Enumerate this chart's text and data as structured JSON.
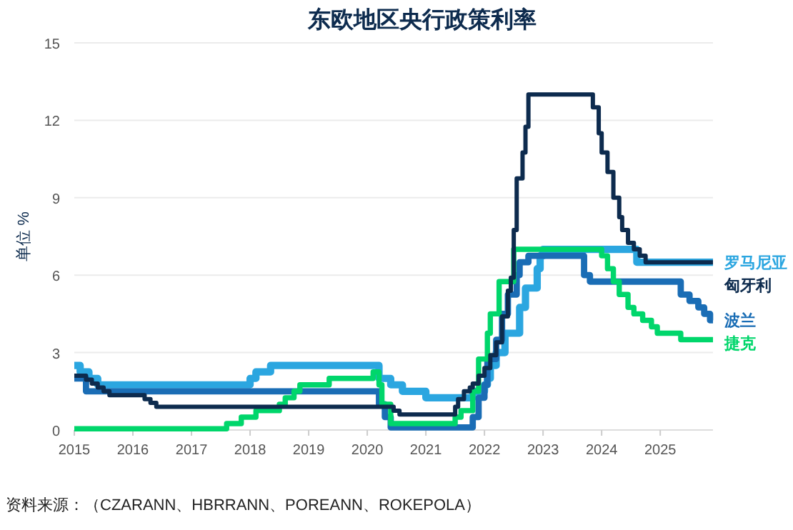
{
  "chart_data": {
    "type": "step",
    "title": "东欧地区央行政策利率",
    "ylabel": "单位 %",
    "annotations": [
      "资料来源：（CZARANN、HBRRANN、POREANN、ROKEPOLA）"
    ],
    "xlim": [
      2015,
      2025.9
    ],
    "xticks": [
      2015,
      2016,
      2017,
      2018,
      2019,
      2020,
      2021,
      2022,
      2023,
      2024,
      2025
    ],
    "ylim": [
      0,
      15
    ],
    "yticks": [
      0,
      3,
      6,
      9,
      12,
      15
    ],
    "grid": "y",
    "legend": false,
    "line_style": "solid",
    "marker": "none",
    "series": [
      {
        "name": "罗马尼亚",
        "color": "#2ba6e0",
        "x": [
          2015,
          2015.1,
          2015.25,
          2015.4,
          2018.0,
          2018.1,
          2018.35,
          2020.2,
          2020.4,
          2020.6,
          2021.0,
          2021.8,
          2022.0,
          2022.05,
          2022.1,
          2022.2,
          2022.35,
          2022.6,
          2022.7,
          2022.9,
          2022.95,
          2023.0,
          2024.6,
          2025.9
        ],
        "values": [
          2.5,
          2.25,
          2.0,
          1.75,
          2.0,
          2.25,
          2.5,
          2.0,
          1.75,
          1.5,
          1.25,
          1.5,
          1.75,
          2.0,
          2.5,
          3.0,
          3.75,
          4.75,
          5.5,
          6.25,
          6.75,
          7.0,
          6.5,
          6.5
        ]
      },
      {
        "name": "波兰",
        "color": "#1a6db5",
        "x": [
          2015,
          2015.2,
          2020.2,
          2020.3,
          2020.4,
          2021.8,
          2021.9,
          2022.0,
          2022.05,
          2022.2,
          2022.3,
          2022.4,
          2022.55,
          2022.6,
          2022.75,
          2023.7,
          2023.8,
          2025.35,
          2025.5,
          2025.65,
          2025.75,
          2025.85,
          2025.9
        ],
        "values": [
          2.0,
          1.5,
          1.0,
          0.5,
          0.1,
          0.5,
          1.25,
          1.75,
          2.75,
          3.5,
          4.5,
          5.25,
          6.0,
          6.5,
          6.75,
          6.0,
          5.75,
          5.25,
          5.0,
          4.75,
          4.5,
          4.25,
          4.25
        ]
      },
      {
        "name": "捷克",
        "color": "#00d66b",
        "x": [
          2015,
          2017.6,
          2017.85,
          2018.1,
          2018.5,
          2018.6,
          2018.75,
          2018.85,
          2019.35,
          2020.1,
          2020.2,
          2020.25,
          2020.4,
          2021.5,
          2021.6,
          2021.8,
          2021.9,
          2022.05,
          2022.1,
          2022.25,
          2022.5,
          2024.0,
          2024.1,
          2024.2,
          2024.3,
          2024.45,
          2024.55,
          2024.7,
          2024.85,
          2024.95,
          2025.35,
          2025.9
        ],
        "values": [
          0.05,
          0.25,
          0.5,
          0.75,
          1.0,
          1.25,
          1.5,
          1.75,
          2.0,
          2.25,
          1.75,
          1.0,
          0.25,
          0.5,
          0.75,
          1.5,
          2.75,
          3.75,
          4.5,
          5.75,
          7.0,
          6.75,
          6.25,
          5.75,
          5.25,
          4.75,
          4.5,
          4.25,
          4.0,
          3.75,
          3.5,
          3.5
        ]
      },
      {
        "name": "匈牙利",
        "color": "#0d2b4e",
        "x": [
          2015,
          2015.2,
          2015.3,
          2015.4,
          2015.5,
          2015.6,
          2016.2,
          2016.3,
          2016.4,
          2020.45,
          2020.55,
          2021.5,
          2021.55,
          2021.65,
          2021.75,
          2021.8,
          2021.9,
          2022.0,
          2022.1,
          2022.2,
          2022.3,
          2022.4,
          2022.45,
          2022.5,
          2022.55,
          2022.65,
          2022.7,
          2022.75,
          2023.85,
          2023.95,
          2024.0,
          2024.1,
          2024.2,
          2024.3,
          2024.35,
          2024.45,
          2024.55,
          2024.65,
          2024.75,
          2025.9
        ],
        "values": [
          2.1,
          1.95,
          1.8,
          1.65,
          1.5,
          1.35,
          1.2,
          1.05,
          0.9,
          0.75,
          0.6,
          0.9,
          1.2,
          1.5,
          1.65,
          1.8,
          2.1,
          2.4,
          2.9,
          3.4,
          4.4,
          5.4,
          5.9,
          7.75,
          9.75,
          10.75,
          11.75,
          13.0,
          12.5,
          11.5,
          10.75,
          10.0,
          9.0,
          8.25,
          7.75,
          7.25,
          7.0,
          6.75,
          6.5,
          6.5
        ]
      }
    ]
  }
}
